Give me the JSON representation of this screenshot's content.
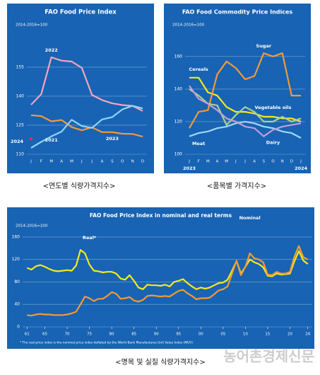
{
  "chart_data": [
    {
      "type": "line",
      "title": "FAO Food Price Index",
      "subtitle": "2014-2016=100",
      "caption": "<연도별 식량가격지수>",
      "categories": [
        "J",
        "F",
        "M",
        "A",
        "M",
        "J",
        "J",
        "A",
        "S",
        "O",
        "N",
        "D"
      ],
      "ylim": [
        110,
        174
      ],
      "yticks": [
        110,
        125,
        140,
        155
      ],
      "grid": true,
      "series": [
        {
          "name": "2022",
          "color": "#f6a5bb",
          "values": [
            135.6,
            141.1,
            160.1,
            158.4,
            157.9,
            154.7,
            140.7,
            138.0,
            136.3,
            135.4,
            135.0,
            132.4
          ]
        },
        {
          "name": "2023",
          "color": "#f39a35",
          "values": [
            130.2,
            129.7,
            127.0,
            127.7,
            124.0,
            122.4,
            123.9,
            121.4,
            121.4,
            120.6,
            120.5,
            119.1
          ]
        },
        {
          "name": "2024",
          "color": "#e8313a",
          "values": [
            118.0,
            null,
            null,
            null,
            null,
            null,
            null,
            null,
            null,
            null,
            null,
            null
          ]
        },
        {
          "name": "2021",
          "color": "#8fd3f6",
          "values": [
            113.3,
            116.4,
            119.2,
            121.7,
            127.8,
            124.6,
            123.6,
            128.0,
            129.2,
            133.2,
            135.0,
            133.7
          ]
        }
      ]
    },
    {
      "type": "line",
      "title": "FAO Food Commodity Price Indices",
      "subtitle": "2014-2016=100",
      "caption": "<품목별 가격지수>",
      "categories": [
        "J",
        "F",
        "M",
        "A",
        "M",
        "J",
        "J",
        "A",
        "S",
        "O",
        "N",
        "D",
        "J"
      ],
      "year_labels": [
        "2023",
        "2024"
      ],
      "ylim": [
        100,
        176
      ],
      "yticks": [
        100,
        120,
        140,
        160
      ],
      "grid": true,
      "series": [
        {
          "name": "Cereals",
          "color": "#f4ea1c",
          "values": [
            147,
            147,
            138,
            136,
            129,
            126,
            126,
            125,
            123,
            123,
            122,
            122,
            120
          ]
        },
        {
          "name": "Sugar",
          "color": "#f39a35",
          "values": [
            116,
            126,
            127,
            149,
            157,
            153,
            146,
            148,
            162,
            160,
            162,
            136,
            136
          ]
        },
        {
          "name": "Vegetable oils",
          "color": "#a9d18e",
          "values": [
            140,
            136,
            131,
            130,
            118,
            124,
            129,
            126,
            120,
            120,
            123,
            120,
            122
          ]
        },
        {
          "name": "Meat",
          "color": "#9fd8f5",
          "values": [
            111,
            113,
            114,
            116,
            117,
            119,
            120,
            119,
            117,
            116,
            114,
            113,
            110
          ]
        },
        {
          "name": "Dairy",
          "color": "#c79bd6",
          "values": [
            142,
            134,
            131,
            127,
            122,
            120,
            117,
            116,
            111,
            115,
            117,
            118,
            119
          ]
        }
      ]
    },
    {
      "type": "line",
      "title": "FAO Food Price Index in nominal and real terms",
      "subtitle": "2014-2016=100",
      "caption": "<명목 및 실질 식량가격지수>",
      "note": "* The real price index is the nominal price index deflated by the World Bank Manufactures Unit Value Index (MUV)",
      "x": [
        1961,
        1962,
        1963,
        1964,
        1965,
        1966,
        1967,
        1968,
        1969,
        1970,
        1971,
        1972,
        1973,
        1974,
        1975,
        1976,
        1977,
        1978,
        1979,
        1980,
        1981,
        1982,
        1983,
        1984,
        1985,
        1986,
        1987,
        1988,
        1989,
        1990,
        1991,
        1992,
        1993,
        1994,
        1995,
        1996,
        1997,
        1998,
        1999,
        2000,
        2001,
        2002,
        2003,
        2004,
        2005,
        2006,
        2007,
        2008,
        2009,
        2010,
        2011,
        2012,
        2013,
        2014,
        2015,
        2016,
        2017,
        2018,
        2019,
        2020,
        2021,
        2022,
        2023,
        2024
      ],
      "xlim": [
        1960,
        2025
      ],
      "xticks": [
        {
          "value": 1961,
          "label": "61"
        },
        {
          "value": 1965,
          "label": "65"
        },
        {
          "value": 1970,
          "label": "70"
        },
        {
          "value": 1975,
          "label": "75"
        },
        {
          "value": 1980,
          "label": "80"
        },
        {
          "value": 1985,
          "label": "85"
        },
        {
          "value": 1990,
          "label": "90"
        },
        {
          "value": 1995,
          "label": "95"
        },
        {
          "value": 2000,
          "label": "00"
        },
        {
          "value": 2005,
          "label": "05"
        },
        {
          "value": 2010,
          "label": "10"
        },
        {
          "value": 2015,
          "label": "15"
        },
        {
          "value": 2020,
          "label": "20"
        },
        {
          "value": 2024,
          "label": "24"
        }
      ],
      "ylim": [
        0,
        170
      ],
      "yticks": [
        0,
        40,
        80,
        120,
        160
      ],
      "grid": true,
      "series": [
        {
          "name": "Real*",
          "color": "#f4ea1c",
          "values": [
            105,
            102,
            108,
            110,
            107,
            103,
            100,
            99,
            100,
            101,
            100,
            109,
            137,
            131,
            111,
            100,
            99,
            97,
            98,
            98,
            95,
            86,
            84,
            92,
            82,
            70,
            67,
            75,
            74,
            74,
            73,
            75,
            72,
            80,
            82,
            85,
            78,
            72,
            67,
            70,
            68,
            70,
            74,
            78,
            79,
            84,
            100,
            117,
            95,
            107,
            120,
            115,
            112,
            106,
            91,
            90,
            95,
            93,
            94,
            95,
            117,
            135,
            118,
            112
          ]
        },
        {
          "name": "Nominal",
          "color": "#f39a35",
          "values": [
            21,
            20,
            22,
            23,
            22,
            22,
            21,
            21,
            21,
            22,
            24,
            27,
            40,
            54,
            51,
            46,
            50,
            50,
            55,
            62,
            59,
            50,
            51,
            53,
            47,
            45,
            48,
            55,
            56,
            55,
            54,
            55,
            54,
            59,
            64,
            66,
            60,
            55,
            49,
            51,
            51,
            52,
            58,
            65,
            67,
            72,
            95,
            118,
            92,
            107,
            131,
            122,
            120,
            115,
            93,
            92,
            98,
            95,
            95,
            98,
            125,
            144,
            124,
            120
          ]
        }
      ]
    }
  ],
  "watermark": "농어촌경제신문"
}
